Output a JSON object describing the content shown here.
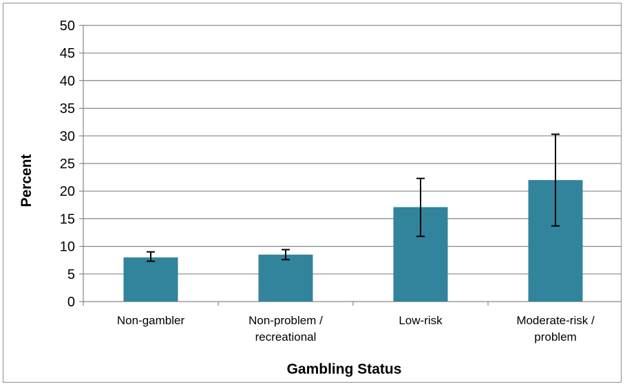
{
  "chart_data": {
    "type": "bar",
    "title": "",
    "xlabel": "Gambling Status",
    "ylabel": "Percent",
    "ylim": [
      0,
      50
    ],
    "yticks": [
      0,
      5,
      10,
      15,
      20,
      25,
      30,
      35,
      40,
      45,
      50
    ],
    "grid": true,
    "legend": "none",
    "categories": [
      [
        "Non-gambler"
      ],
      [
        "Non-problem /",
        "recreational"
      ],
      [
        "Low-risk"
      ],
      [
        "Moderate-risk /",
        "problem"
      ]
    ],
    "values": [
      8.0,
      8.5,
      17.1,
      22.0
    ],
    "error_low": [
      7.3,
      7.6,
      11.8,
      13.7
    ],
    "error_high": [
      9.0,
      9.4,
      22.3,
      30.3
    ],
    "colors": {
      "bar": "#31849b",
      "grid": "#868686",
      "error": "#000000"
    }
  }
}
